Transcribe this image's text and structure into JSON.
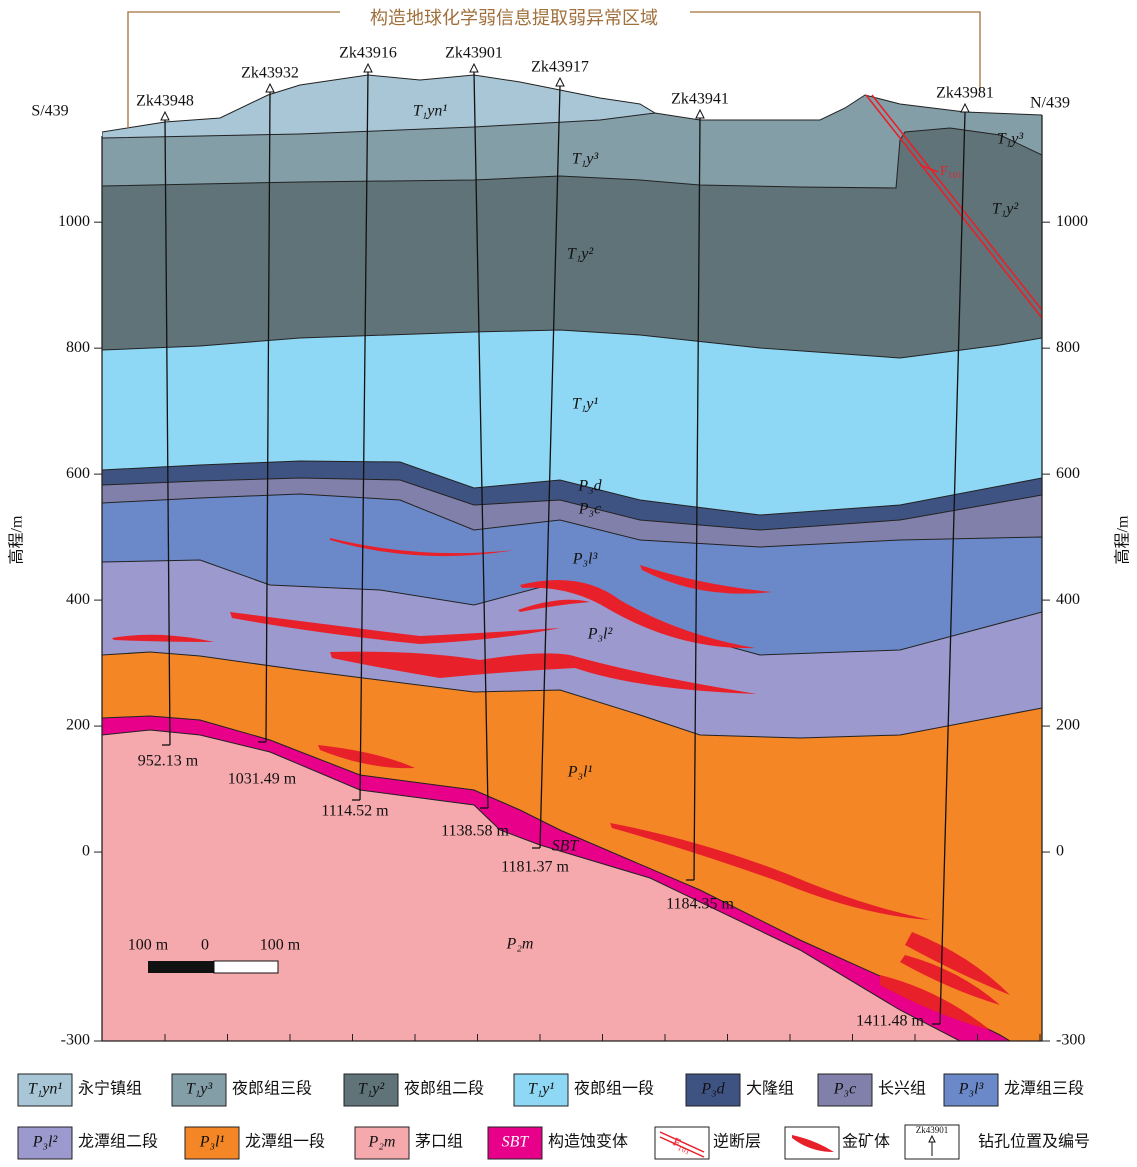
{
  "title": "构造地球化学弱信息提取弱异常区域",
  "section": {
    "left": "S/439",
    "right": "N/439"
  },
  "axis": {
    "label": "高程/m",
    "ylim": [
      -300,
      1140
    ],
    "yticks": [
      -300,
      0,
      200,
      400,
      600,
      800,
      1000
    ]
  },
  "drillholes": [
    {
      "name": "Zk43948",
      "depth": "952.13 m"
    },
    {
      "name": "Zk43932",
      "depth": "1031.49 m"
    },
    {
      "name": "Zk43916",
      "depth": "1114.52 m"
    },
    {
      "name": "Zk43901",
      "depth": "1138.58 m"
    },
    {
      "name": "Zk43917",
      "depth": "1181.37 m"
    },
    {
      "name": "Zk43941",
      "depth": "1184.35 m"
    },
    {
      "name": "Zk43981",
      "depth": "1411.48 m"
    }
  ],
  "units": [
    {
      "code": "T₁yn¹",
      "name": "永宁镇组",
      "color": "#a8c6d6"
    },
    {
      "code": "T₁y³",
      "name": "夜郎组三段",
      "color": "#849ea8"
    },
    {
      "code": "T₁y²",
      "name": "夜郎组二段",
      "color": "#5f7379"
    },
    {
      "code": "T₁y¹",
      "name": "夜郎组一段",
      "color": "#8fd8f5"
    },
    {
      "code": "P₃d",
      "name": "大隆组",
      "color": "#3f5383"
    },
    {
      "code": "P₃c",
      "name": "长兴组",
      "color": "#8180aa"
    },
    {
      "code": "P₃l³",
      "name": "龙潭组三段",
      "color": "#6b89c9"
    },
    {
      "code": "P₃l²",
      "name": "龙潭组二段",
      "color": "#9b99cd"
    },
    {
      "code": "P₃l¹",
      "name": "龙潭组一段",
      "color": "#f58625"
    },
    {
      "code": "P₂m",
      "name": "茅口组",
      "color": "#f5a9ad"
    },
    {
      "code": "SBT",
      "name": "构造蚀变体",
      "color": "#e8008b"
    }
  ],
  "fault": {
    "label": "F₁₀₁",
    "name": "逆断层"
  },
  "ore": {
    "name": "金矿体"
  },
  "drill_legend": {
    "name": "钻孔位置及编号"
  },
  "scale": {
    "left": "100 m",
    "zero": "0",
    "right": "100 m"
  }
}
